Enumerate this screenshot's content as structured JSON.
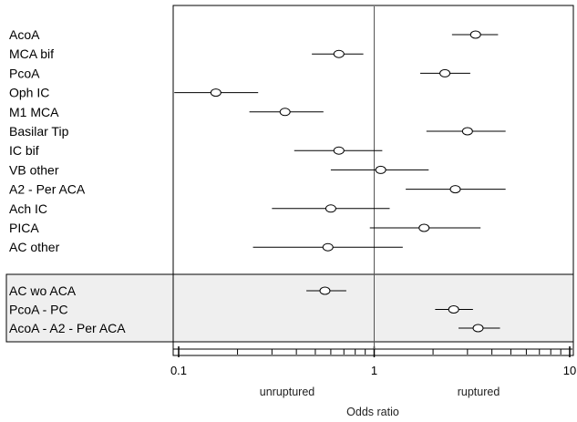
{
  "chart_data": {
    "type": "forest",
    "xscale": "log",
    "xlim": [
      0.1,
      10
    ],
    "xticks": [
      {
        "value": 0.1,
        "label": "0.1"
      },
      {
        "value": 1,
        "label": "1"
      },
      {
        "value": 10,
        "label": "10"
      }
    ],
    "reference_line": 1,
    "xlabel": "Odds ratio",
    "left_caption": "unruptured",
    "right_caption": "ruptured",
    "groups": [
      {
        "shaded": false,
        "rows": [
          {
            "label": "AcoA",
            "or": 3.3,
            "lo": 2.5,
            "hi": 4.3
          },
          {
            "label": "MCA bif",
            "or": 0.66,
            "lo": 0.48,
            "hi": 0.88
          },
          {
            "label": "PcoA",
            "or": 2.3,
            "lo": 1.72,
            "hi": 3.1
          },
          {
            "label": "Oph IC",
            "or": 0.155,
            "lo": 0.095,
            "hi": 0.255
          },
          {
            "label": "M1 MCA",
            "or": 0.35,
            "lo": 0.23,
            "hi": 0.55
          },
          {
            "label": "Basilar Tip",
            "or": 3.0,
            "lo": 1.85,
            "hi": 4.7
          },
          {
            "label": "IC bif",
            "or": 0.66,
            "lo": 0.39,
            "hi": 1.1
          },
          {
            "label": "VB other",
            "or": 1.08,
            "lo": 0.6,
            "hi": 1.9
          },
          {
            "label": "A2 - Per ACA",
            "or": 2.6,
            "lo": 1.45,
            "hi": 4.7
          },
          {
            "label": "Ach IC",
            "or": 0.6,
            "lo": 0.3,
            "hi": 1.2
          },
          {
            "label": "PICA",
            "or": 1.8,
            "lo": 0.95,
            "hi": 3.5
          },
          {
            "label": "AC other",
            "or": 0.58,
            "lo": 0.24,
            "hi": 1.4
          }
        ]
      },
      {
        "shaded": true,
        "rows": [
          {
            "label": "AC wo ACA",
            "or": 0.56,
            "lo": 0.45,
            "hi": 0.72
          },
          {
            "label": "PcoA - PC",
            "or": 2.55,
            "lo": 2.05,
            "hi": 3.2
          },
          {
            "label": "AcoA - A2 - Per ACA",
            "or": 3.4,
            "lo": 2.7,
            "hi": 4.4
          }
        ]
      }
    ]
  }
}
